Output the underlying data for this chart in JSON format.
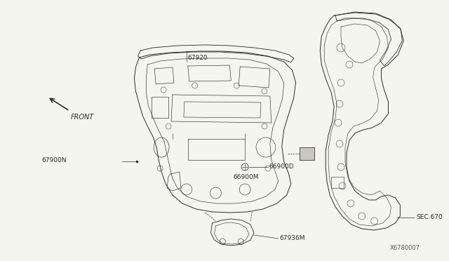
{
  "bg_color": "#f5f5f0",
  "fig_width": 6.4,
  "fig_height": 3.72,
  "dpi": 100,
  "labels": {
    "front_arrow_text": "FRONT",
    "part_67920": "67920",
    "part_67900N": "67900N",
    "part_66900D": "66900D",
    "part_67936M": "67936M",
    "part_66900M": "66900M",
    "part_SEC670": "SEC.670",
    "watermark": "X6780007"
  },
  "line_color": "#2a2a2a",
  "line_width": 0.7,
  "font_size": 6.5
}
